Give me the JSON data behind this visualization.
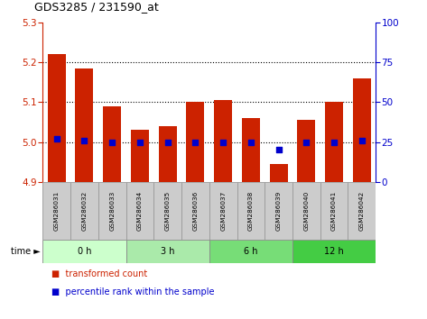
{
  "title": "GDS3285 / 231590_at",
  "samples": [
    "GSM286031",
    "GSM286032",
    "GSM286033",
    "GSM286034",
    "GSM286035",
    "GSM286036",
    "GSM286037",
    "GSM286038",
    "GSM286039",
    "GSM286040",
    "GSM286041",
    "GSM286042"
  ],
  "red_values": [
    5.22,
    5.185,
    5.09,
    5.03,
    5.04,
    5.1,
    5.105,
    5.06,
    4.945,
    5.055,
    5.1,
    5.16
  ],
  "blue_values": [
    27,
    26,
    25,
    25,
    25,
    25,
    25,
    25,
    20,
    25,
    25,
    26
  ],
  "ylim_left": [
    4.9,
    5.3
  ],
  "ylim_right": [
    0,
    100
  ],
  "yticks_left": [
    4.9,
    5.0,
    5.1,
    5.2,
    5.3
  ],
  "yticks_right": [
    0,
    25,
    50,
    75,
    100
  ],
  "gridlines": [
    5.0,
    5.1,
    5.2
  ],
  "groups": [
    {
      "label": "0 h",
      "start": 0,
      "end": 3,
      "color": "#ccffcc"
    },
    {
      "label": "3 h",
      "start": 3,
      "end": 6,
      "color": "#aaeaaa"
    },
    {
      "label": "6 h",
      "start": 6,
      "end": 9,
      "color": "#77dd77"
    },
    {
      "label": "12 h",
      "start": 9,
      "end": 12,
      "color": "#44cc44"
    }
  ],
  "bar_color": "#cc2200",
  "dot_color": "#0000cc",
  "bar_bottom": 4.9,
  "legend_red": "transformed count",
  "legend_blue": "percentile rank within the sample",
  "bg_color": "#ffffff",
  "plot_bg": "#ffffff",
  "tick_label_bg": "#cccccc",
  "left_tick_color": "#cc2200",
  "right_tick_color": "#0000cc"
}
